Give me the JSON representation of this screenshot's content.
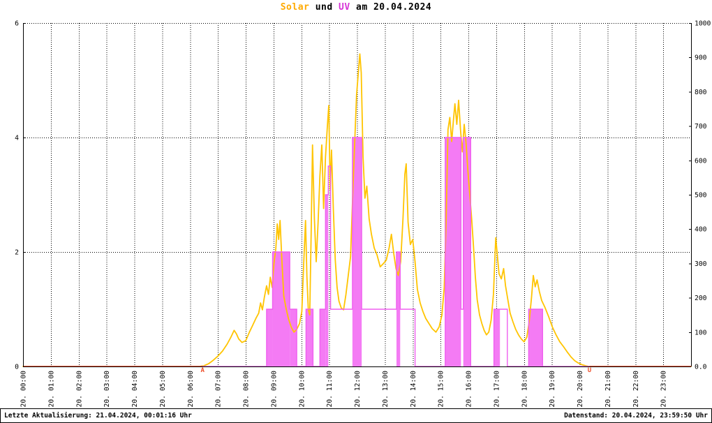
{
  "title": {
    "part1": "Solar",
    "part2": " und ",
    "part3": "UV",
    "part4": " am 20.04.2024"
  },
  "footer": {
    "left": "Letzte Aktualisierung: 21.04.2024, 00:01:16 Uhr",
    "right": "Datenstand: 20.04.2024, 23:59:50 Uhr"
  },
  "colors": {
    "solar_line": "#ffc400",
    "title_solar": "#ffaa00",
    "uv_line": "#ef5fef",
    "uv_fill": "#f47bf4",
    "title_uv": "#d633d6",
    "night_line": "#f85c3c",
    "sun_marker": "#ee4e2a",
    "grid": "#000000",
    "axis": "#000000",
    "text": "#000000"
  },
  "chart_data": {
    "type": "line",
    "title": "Solar und UV am 20.04.2024",
    "grid": "dotted",
    "x_axis": {
      "unit": "hour",
      "range_minutes": [
        0,
        1440
      ],
      "labels": [
        "20. 00:00",
        "20. 01:00",
        "20. 02:00",
        "20. 03:00",
        "20. 04:00",
        "20. 05:00",
        "20. 06:00",
        "20. 07:00",
        "20. 08:00",
        "20. 09:00",
        "20. 10:00",
        "20. 11:00",
        "20. 12:00",
        "20. 13:00",
        "20. 14:00",
        "20. 15:00",
        "20. 16:00",
        "20. 17:00",
        "20. 18:00",
        "20. 19:00",
        "20. 20:00",
        "20. 21:00",
        "20. 22:00",
        "20. 23:00"
      ]
    },
    "left_axis": {
      "min": 0,
      "max": 6,
      "grid_values": [
        6,
        4,
        2
      ],
      "ticks": [
        {
          "value": 6,
          "label": "6"
        },
        {
          "value": 4,
          "label": "4"
        },
        {
          "value": 2,
          "label": "2"
        },
        {
          "value": 0,
          "label": "0"
        }
      ]
    },
    "right_axis": {
      "min": 0,
      "max": 1000,
      "ticks": [
        {
          "value": 1000,
          "label": "1000"
        },
        {
          "value": 900,
          "label": "900"
        },
        {
          "value": 800,
          "label": "800"
        },
        {
          "value": 700,
          "label": "700"
        },
        {
          "value": 600,
          "label": "600"
        },
        {
          "value": 500,
          "label": "500"
        },
        {
          "value": 400,
          "label": "400"
        },
        {
          "value": 300,
          "label": "300"
        },
        {
          "value": 200,
          "label": "200"
        },
        {
          "value": 100,
          "label": "100"
        },
        {
          "value": 0,
          "label": "0.0"
        }
      ]
    },
    "sun_markers": [
      {
        "label": "A",
        "minute": 387
      },
      {
        "label": "U",
        "minute": 1221
      }
    ],
    "night_zero_segments": [
      [
        0,
        387
      ],
      [
        1221,
        1440
      ]
    ],
    "series": [
      {
        "name": "Solar",
        "axis": "right",
        "points": [
          [
            0,
            0
          ],
          [
            380,
            0
          ],
          [
            390,
            2
          ],
          [
            400,
            8
          ],
          [
            410,
            18
          ],
          [
            420,
            30
          ],
          [
            430,
            45
          ],
          [
            440,
            65
          ],
          [
            448,
            85
          ],
          [
            455,
            105
          ],
          [
            460,
            95
          ],
          [
            465,
            80
          ],
          [
            472,
            70
          ],
          [
            480,
            75
          ],
          [
            488,
            100
          ],
          [
            495,
            120
          ],
          [
            502,
            140
          ],
          [
            508,
            155
          ],
          [
            512,
            185
          ],
          [
            516,
            165
          ],
          [
            520,
            200
          ],
          [
            525,
            235
          ],
          [
            529,
            210
          ],
          [
            533,
            260
          ],
          [
            537,
            230
          ],
          [
            541,
            300
          ],
          [
            545,
            345
          ],
          [
            548,
            415
          ],
          [
            551,
            370
          ],
          [
            554,
            425
          ],
          [
            558,
            310
          ],
          [
            562,
            205
          ],
          [
            567,
            170
          ],
          [
            572,
            140
          ],
          [
            578,
            115
          ],
          [
            584,
            100
          ],
          [
            590,
            108
          ],
          [
            596,
            125
          ],
          [
            601,
            160
          ],
          [
            605,
            300
          ],
          [
            609,
            425
          ],
          [
            612,
            260
          ],
          [
            615,
            165
          ],
          [
            618,
            150
          ],
          [
            621,
            380
          ],
          [
            624,
            645
          ],
          [
            628,
            430
          ],
          [
            632,
            305
          ],
          [
            636,
            420
          ],
          [
            640,
            555
          ],
          [
            644,
            645
          ],
          [
            648,
            460
          ],
          [
            652,
            610
          ],
          [
            656,
            700
          ],
          [
            659,
            760
          ],
          [
            662,
            515
          ],
          [
            665,
            630
          ],
          [
            669,
            455
          ],
          [
            673,
            310
          ],
          [
            677,
            230
          ],
          [
            681,
            190
          ],
          [
            686,
            170
          ],
          [
            691,
            165
          ],
          [
            696,
            210
          ],
          [
            701,
            265
          ],
          [
            706,
            320
          ],
          [
            711,
            510
          ],
          [
            715,
            655
          ],
          [
            719,
            790
          ],
          [
            723,
            860
          ],
          [
            726,
            910
          ],
          [
            729,
            855
          ],
          [
            733,
            610
          ],
          [
            737,
            490
          ],
          [
            741,
            525
          ],
          [
            746,
            430
          ],
          [
            751,
            385
          ],
          [
            757,
            345
          ],
          [
            763,
            325
          ],
          [
            770,
            290
          ],
          [
            777,
            300
          ],
          [
            783,
            310
          ],
          [
            789,
            345
          ],
          [
            794,
            385
          ],
          [
            799,
            330
          ],
          [
            804,
            285
          ],
          [
            809,
            265
          ],
          [
            814,
            305
          ],
          [
            819,
            430
          ],
          [
            823,
            560
          ],
          [
            826,
            590
          ],
          [
            830,
            420
          ],
          [
            835,
            355
          ],
          [
            840,
            370
          ],
          [
            845,
            305
          ],
          [
            850,
            225
          ],
          [
            856,
            185
          ],
          [
            862,
            160
          ],
          [
            868,
            140
          ],
          [
            875,
            125
          ],
          [
            882,
            110
          ],
          [
            890,
            100
          ],
          [
            897,
            115
          ],
          [
            903,
            150
          ],
          [
            908,
            230
          ],
          [
            912,
            420
          ],
          [
            916,
            690
          ],
          [
            920,
            725
          ],
          [
            924,
            655
          ],
          [
            928,
            720
          ],
          [
            931,
            765
          ],
          [
            935,
            705
          ],
          [
            939,
            775
          ],
          [
            943,
            690
          ],
          [
            947,
            625
          ],
          [
            951,
            705
          ],
          [
            955,
            650
          ],
          [
            959,
            570
          ],
          [
            963,
            500
          ],
          [
            967,
            430
          ],
          [
            971,
            350
          ],
          [
            975,
            260
          ],
          [
            979,
            195
          ],
          [
            984,
            150
          ],
          [
            989,
            125
          ],
          [
            994,
            105
          ],
          [
            999,
            92
          ],
          [
            1004,
            100
          ],
          [
            1009,
            135
          ],
          [
            1014,
            210
          ],
          [
            1019,
            375
          ],
          [
            1022,
            330
          ],
          [
            1026,
            270
          ],
          [
            1031,
            255
          ],
          [
            1036,
            285
          ],
          [
            1040,
            235
          ],
          [
            1045,
            195
          ],
          [
            1050,
            155
          ],
          [
            1056,
            130
          ],
          [
            1062,
            108
          ],
          [
            1068,
            92
          ],
          [
            1074,
            80
          ],
          [
            1080,
            72
          ],
          [
            1086,
            85
          ],
          [
            1091,
            130
          ],
          [
            1096,
            200
          ],
          [
            1100,
            265
          ],
          [
            1104,
            232
          ],
          [
            1108,
            252
          ],
          [
            1113,
            218
          ],
          [
            1118,
            192
          ],
          [
            1125,
            172
          ],
          [
            1133,
            145
          ],
          [
            1141,
            115
          ],
          [
            1149,
            92
          ],
          [
            1157,
            72
          ],
          [
            1165,
            58
          ],
          [
            1173,
            42
          ],
          [
            1181,
            28
          ],
          [
            1189,
            17
          ],
          [
            1197,
            10
          ],
          [
            1205,
            5
          ],
          [
            1213,
            2
          ],
          [
            1220,
            0
          ],
          [
            1440,
            0
          ]
        ]
      },
      {
        "name": "UV",
        "axis": "left",
        "segments": [
          [
            0,
            525,
            0,
            false
          ],
          [
            525,
            538,
            1,
            true
          ],
          [
            538,
            575,
            2,
            true
          ],
          [
            575,
            590,
            1,
            true
          ],
          [
            590,
            610,
            0,
            false
          ],
          [
            610,
            625,
            1,
            true
          ],
          [
            625,
            640,
            0,
            false
          ],
          [
            640,
            652,
            1,
            true
          ],
          [
            652,
            658,
            3,
            true
          ],
          [
            658,
            663,
            3.5,
            false
          ],
          [
            663,
            710,
            1,
            false
          ],
          [
            710,
            730,
            4,
            true
          ],
          [
            730,
            805,
            1,
            false
          ],
          [
            805,
            813,
            2,
            true
          ],
          [
            813,
            845,
            1,
            false
          ],
          [
            845,
            910,
            0,
            false
          ],
          [
            910,
            944,
            4,
            true
          ],
          [
            944,
            949,
            1,
            false
          ],
          [
            949,
            965,
            4,
            true
          ],
          [
            965,
            1015,
            0,
            false
          ],
          [
            1015,
            1028,
            1,
            true
          ],
          [
            1028,
            1044,
            1,
            false
          ],
          [
            1044,
            1090,
            0,
            false
          ],
          [
            1090,
            1120,
            1,
            true
          ],
          [
            1120,
            1440,
            0,
            false
          ]
        ]
      }
    ]
  }
}
